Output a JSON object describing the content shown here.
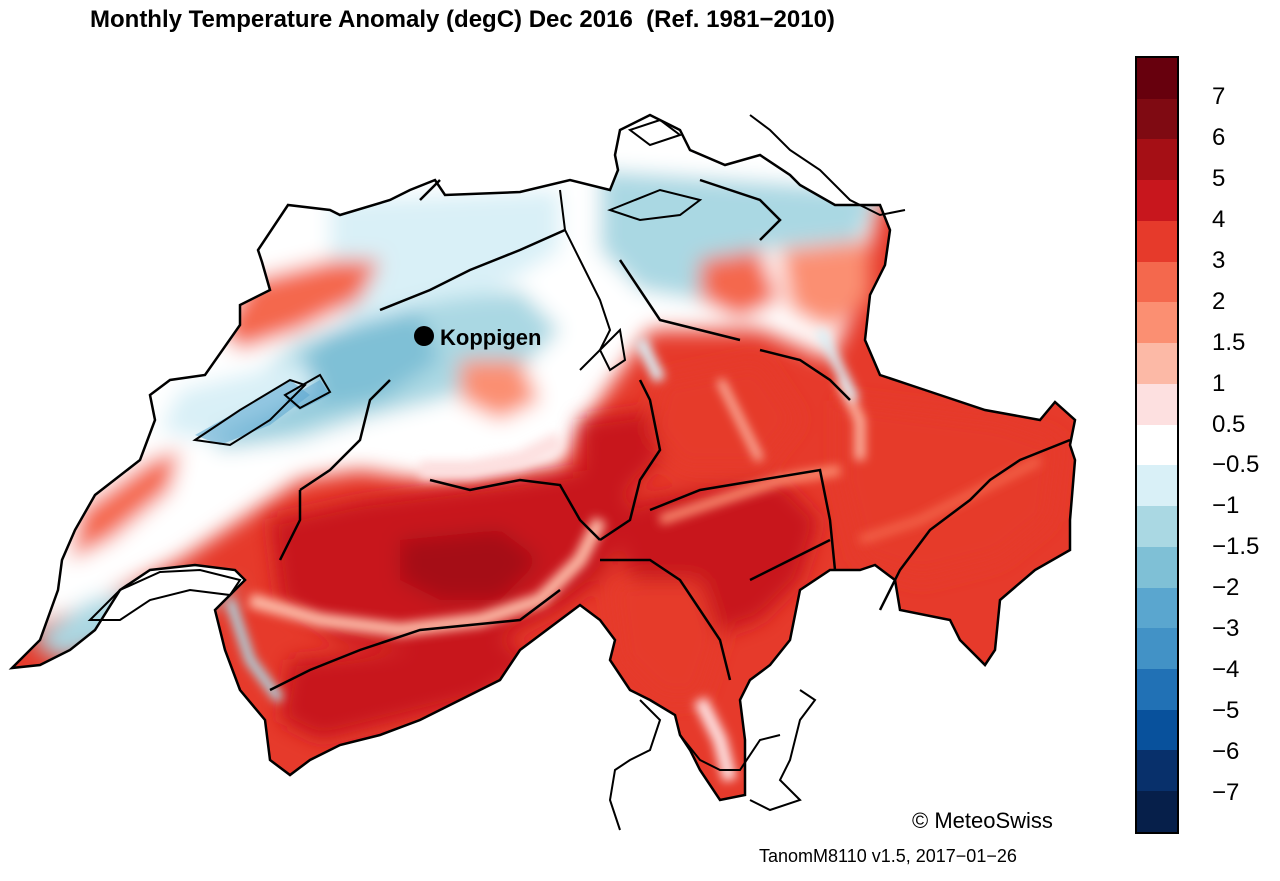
{
  "title": "Monthly Temperature Anomaly (degC) Dec 2016  (Ref. 1981−2010)",
  "credit": "© MeteoSwiss",
  "version": "TanomM8110 v1.5, 2017−01−26",
  "station": {
    "name": "Koppigen",
    "marker": "filled-black-circle"
  },
  "colorbar": {
    "ticks": [
      "7",
      "6",
      "5",
      "4",
      "3",
      "2",
      "1.5",
      "1",
      "0.5",
      "−0.5",
      "−1",
      "−1.5",
      "−2",
      "−3",
      "−4",
      "−5",
      "−6",
      "−7"
    ],
    "colors": [
      "#67000d",
      "#7f0a12",
      "#a50f15",
      "#c8161d",
      "#e63a2b",
      "#f4684d",
      "#fb8f72",
      "#fcb9a6",
      "#fde0e0",
      "#ffffff",
      "#d9f0f7",
      "#aad8e3",
      "#7fc0d6",
      "#5aa6cf",
      "#4292c6",
      "#2171b5",
      "#08519c",
      "#08306b",
      "#061f4a"
    ]
  },
  "colors": {
    "border": "#000000",
    "background": "#ffffff"
  }
}
